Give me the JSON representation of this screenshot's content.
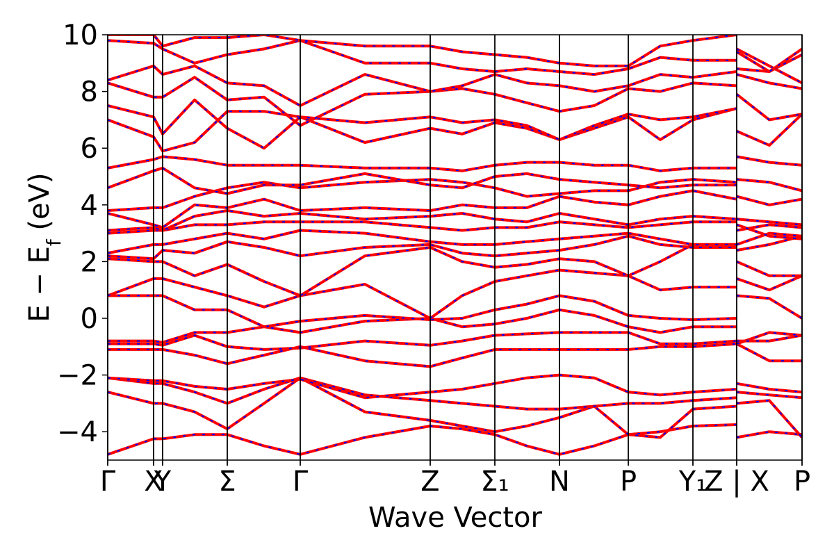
{
  "chart_data": {
    "type": "line",
    "x_label": "Wave Vector",
    "y_label": {
      "main": "E − E",
      "sub": "f",
      "unit": " (eV)"
    },
    "line_color": "#ff0000",
    "dash_color": "#0000ff",
    "xlim": [
      0,
      9.99
    ],
    "ylim": [
      -5,
      10
    ],
    "xticks": [
      {
        "value": 0,
        "label": "Γ"
      },
      {
        "value": 0.66,
        "label": "X"
      },
      {
        "value": 0.79,
        "label": "Y"
      },
      {
        "value": 1.72,
        "label": "Σ"
      },
      {
        "value": 2.77,
        "label": "Γ"
      },
      {
        "value": 4.64,
        "label": "Z"
      },
      {
        "value": 5.57,
        "label": "Σ₁"
      },
      {
        "value": 6.5,
        "label": "N"
      },
      {
        "value": 7.49,
        "label": "P"
      },
      {
        "value": 8.42,
        "label": "Y₁"
      },
      {
        "value": 9.05,
        "label": "Z | X"
      },
      {
        "value": 9.99,
        "label": "P"
      }
    ],
    "yticks": [
      {
        "value": -4,
        "label": "−4"
      },
      {
        "value": -2,
        "label": "−2"
      },
      0,
      2,
      4,
      6,
      8,
      10
    ],
    "x": [
      0,
      0.66,
      0.79,
      1.25,
      1.72,
      2.25,
      2.77,
      3.7,
      4.64,
      5.1,
      5.57,
      6.03,
      6.5,
      7.0,
      7.49,
      7.95,
      8.42,
      9.05,
      9.05,
      9.05,
      9.52,
      9.99
    ],
    "series": [
      {
        "values": [
          -4.8,
          -4.25,
          -4.25,
          -4.1,
          -4.1,
          -4.5,
          -4.8,
          -4.2,
          -3.8,
          -3.9,
          -4.1,
          -4.5,
          -4.8,
          -4.5,
          -4.1,
          -4.0,
          -3.8,
          -3.75,
          null,
          -4.2,
          -4.0,
          -4.1
        ]
      },
      {
        "values": [
          -2.6,
          -3.0,
          -3.0,
          -3.3,
          -3.9,
          -3.0,
          -2.1,
          -3.3,
          -3.6,
          -3.8,
          -4.0,
          -3.8,
          -3.5,
          -3.1,
          -4.1,
          -4.2,
          -3.2,
          -3.1,
          null,
          -3.0,
          -2.9,
          -4.2
        ]
      },
      {
        "values": [
          -2.1,
          -2.3,
          -2.3,
          -2.6,
          -3.0,
          -2.5,
          -2.1,
          -2.7,
          -2.9,
          -3.0,
          -3.1,
          -3.2,
          -3.2,
          -3.1,
          -3.0,
          -3.0,
          -2.9,
          -2.8,
          null,
          -2.6,
          -2.7,
          -2.8
        ]
      },
      {
        "values": [
          -2.1,
          -2.2,
          -2.2,
          -2.4,
          -2.5,
          -2.3,
          -2.15,
          -2.8,
          -2.6,
          -2.5,
          -2.3,
          -2.1,
          -2.0,
          -2.1,
          -2.6,
          -2.7,
          -2.6,
          -2.5,
          null,
          -2.3,
          -2.5,
          -2.6
        ]
      },
      {
        "values": [
          -1.1,
          -1.1,
          -1.1,
          -1.3,
          -1.6,
          -1.3,
          -1.0,
          -1.5,
          -1.7,
          -1.4,
          -1.1,
          -1.1,
          -1.1,
          -1.1,
          -1.1,
          -1.0,
          -1.0,
          -0.9,
          null,
          -0.9,
          -1.5,
          -1.5
        ]
      },
      {
        "values": [
          -0.9,
          -0.9,
          -0.95,
          -0.6,
          -1.0,
          -1.1,
          -1.05,
          -0.8,
          -0.95,
          -0.8,
          -0.6,
          -0.55,
          -0.5,
          -0.5,
          -0.5,
          -0.9,
          -0.9,
          -0.8,
          null,
          -0.9,
          -0.5,
          -0.6
        ]
      },
      {
        "values": [
          -0.8,
          -0.8,
          -0.85,
          -0.5,
          -0.5,
          -0.3,
          -0.5,
          -0.1,
          0.0,
          -0.3,
          -0.2,
          0.0,
          0.3,
          0.1,
          -0.3,
          -0.5,
          -0.3,
          -0.3,
          null,
          -0.8,
          -0.8,
          -0.6
        ]
      },
      {
        "values": [
          0.8,
          0.8,
          0.8,
          0.3,
          0.3,
          -0.3,
          -0.1,
          0.1,
          -0.05,
          0.0,
          0.3,
          0.5,
          0.8,
          0.6,
          0.1,
          0.0,
          -0.05,
          0.0,
          null,
          0.8,
          0.7,
          0.0
        ]
      },
      {
        "values": [
          0.8,
          1.4,
          1.4,
          1.1,
          0.8,
          0.4,
          0.8,
          1.2,
          0.0,
          0.8,
          1.3,
          1.5,
          1.7,
          1.6,
          1.5,
          1.0,
          1.1,
          1.1,
          null,
          1.4,
          1.0,
          1.5
        ]
      },
      {
        "values": [
          2.1,
          2.0,
          2.0,
          1.5,
          1.9,
          1.3,
          0.8,
          2.2,
          2.5,
          2.0,
          1.8,
          1.9,
          2.1,
          2.0,
          1.5,
          2.0,
          2.6,
          2.6,
          null,
          2.0,
          1.5,
          1.5
        ]
      },
      {
        "values": [
          2.2,
          2.1,
          2.4,
          2.3,
          2.7,
          2.5,
          2.2,
          2.5,
          2.6,
          2.3,
          2.2,
          2.3,
          2.4,
          2.6,
          2.9,
          2.6,
          2.5,
          2.5,
          null,
          2.4,
          2.6,
          2.9
        ]
      },
      {
        "values": [
          2.3,
          2.6,
          2.6,
          2.8,
          3.0,
          2.8,
          3.1,
          3.0,
          2.7,
          2.6,
          2.6,
          2.7,
          2.8,
          2.9,
          3.0,
          2.8,
          2.6,
          2.6,
          null,
          2.6,
          3.0,
          2.9
        ]
      },
      {
        "values": [
          3.0,
          3.1,
          3.1,
          3.3,
          3.3,
          3.4,
          3.4,
          3.4,
          3.2,
          3.1,
          3.2,
          3.2,
          3.4,
          3.3,
          3.2,
          3.3,
          3.4,
          3.4,
          null,
          3.1,
          3.3,
          3.2
        ]
      },
      {
        "values": [
          3.1,
          3.2,
          3.1,
          3.6,
          3.8,
          3.6,
          3.7,
          3.5,
          3.6,
          3.7,
          3.5,
          3.4,
          3.7,
          3.5,
          3.3,
          3.5,
          3.6,
          3.5,
          null,
          3.3,
          2.9,
          2.8
        ]
      },
      {
        "values": [
          3.7,
          3.3,
          3.2,
          4.0,
          3.9,
          4.2,
          3.8,
          3.9,
          3.8,
          4.0,
          3.9,
          3.9,
          4.3,
          4.1,
          4.0,
          4.3,
          4.5,
          4.2,
          null,
          3.5,
          3.4,
          3.3
        ]
      },
      {
        "values": [
          3.8,
          3.9,
          3.9,
          4.3,
          4.6,
          4.8,
          4.6,
          4.8,
          4.9,
          4.8,
          4.6,
          4.3,
          4.4,
          4.5,
          4.5,
          4.8,
          4.9,
          4.8,
          null,
          4.3,
          4.0,
          4.2
        ]
      },
      {
        "values": [
          4.6,
          5.2,
          5.3,
          4.6,
          4.4,
          4.7,
          4.7,
          5.1,
          4.7,
          4.6,
          5.0,
          5.1,
          4.9,
          4.8,
          4.7,
          4.6,
          4.7,
          4.7,
          null,
          4.9,
          4.8,
          4.5
        ]
      },
      {
        "values": [
          5.3,
          5.6,
          5.7,
          5.6,
          5.4,
          5.4,
          5.4,
          5.3,
          5.3,
          5.2,
          5.4,
          5.5,
          5.5,
          5.4,
          5.4,
          5.2,
          5.3,
          5.3,
          null,
          5.7,
          5.5,
          5.4
        ]
      },
      {
        "values": [
          7.0,
          6.4,
          5.9,
          6.2,
          7.3,
          7.3,
          7.1,
          6.2,
          6.7,
          6.5,
          6.9,
          6.7,
          6.3,
          6.7,
          7.1,
          6.3,
          7.0,
          7.4,
          null,
          6.6,
          6.1,
          7.2
        ]
      },
      {
        "values": [
          7.5,
          7.1,
          6.5,
          7.7,
          6.7,
          6.0,
          7.1,
          6.9,
          7.1,
          6.9,
          7.0,
          6.8,
          6.3,
          6.8,
          7.2,
          7.0,
          7.1,
          7.4,
          null,
          7.9,
          7.0,
          7.2
        ]
      },
      {
        "values": [
          8.3,
          7.8,
          7.8,
          8.5,
          7.7,
          7.8,
          6.8,
          7.9,
          8.0,
          8.1,
          7.9,
          7.6,
          7.3,
          7.5,
          8.1,
          8.0,
          8.3,
          8.2,
          null,
          8.6,
          8.3,
          8.1
        ]
      },
      {
        "values": [
          8.4,
          8.9,
          8.6,
          8.9,
          8.3,
          8.2,
          7.5,
          8.6,
          8.0,
          8.2,
          8.6,
          8.3,
          8.2,
          8.0,
          8.2,
          8.6,
          8.5,
          8.7,
          null,
          9.5,
          8.9,
          8.3
        ]
      },
      {
        "values": [
          9.8,
          9.7,
          9.5,
          9.0,
          9.3,
          9.5,
          9.8,
          9.0,
          9.0,
          8.8,
          8.7,
          8.8,
          8.7,
          8.6,
          8.8,
          9.2,
          9.1,
          9.1,
          null,
          8.8,
          8.7,
          9.3
        ]
      },
      {
        "values": [
          10.0,
          10.0,
          9.6,
          9.9,
          9.9,
          10.0,
          9.8,
          9.6,
          9.6,
          9.4,
          9.3,
          9.2,
          9.0,
          8.9,
          8.9,
          9.6,
          9.8,
          10.0,
          null,
          9.4,
          8.7,
          9.5
        ]
      }
    ]
  }
}
